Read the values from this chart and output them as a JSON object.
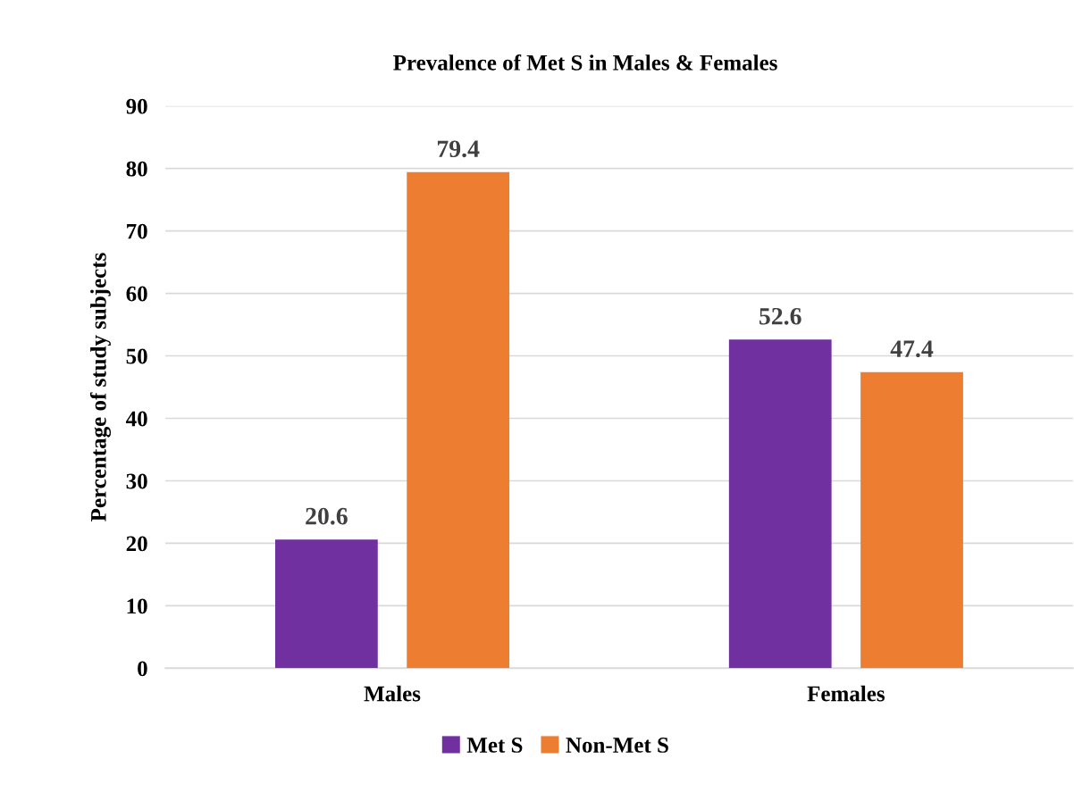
{
  "chart_data": {
    "type": "bar",
    "title": "Prevalence of Met S in Males & Females",
    "ylabel": "Percentage of study subjects",
    "categories": [
      "Males",
      "Females"
    ],
    "series": [
      {
        "name": "Met S",
        "color": "#7030a0",
        "values": [
          20.6,
          52.6
        ]
      },
      {
        "name": "Non-Met S",
        "color": "#ed7d31",
        "values": [
          79.4,
          47.4
        ]
      }
    ],
    "ylim": [
      0,
      90
    ],
    "yticks": [
      0,
      10,
      20,
      30,
      40,
      50,
      60,
      70,
      80,
      90
    ],
    "grid": "y",
    "legend": "bottom",
    "data_labels": true
  }
}
